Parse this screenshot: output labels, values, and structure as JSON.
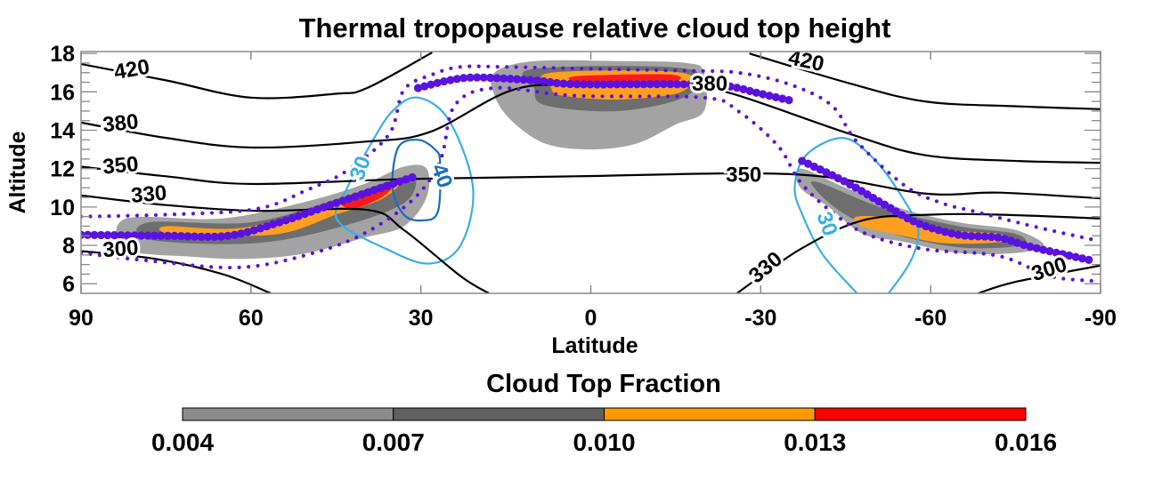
{
  "chart_data": {
    "type": "heatmap",
    "title": "Thermal tropopause relative cloud top height",
    "xlabel": "Latitude",
    "ylabel": "Altitude",
    "xlim": [
      90,
      -90
    ],
    "ylim": [
      5.5,
      18.1
    ],
    "x_ticks": [
      90,
      60,
      30,
      0,
      -30,
      -60,
      -90
    ],
    "y_ticks": [
      6,
      8,
      10,
      12,
      14,
      16,
      18
    ],
    "colorbar": {
      "title": "Cloud Top Fraction",
      "ticks": [
        "0.004",
        "0.007",
        "0.010",
        "0.013",
        "0.016"
      ],
      "colors": [
        "#8c8c8c",
        "#606060",
        "#ff9900",
        "#ff0000"
      ]
    },
    "cloud_regions": [
      {
        "level": 0,
        "points": [
          [
            82,
            9.4
          ],
          [
            65,
            9.4
          ],
          [
            50,
            10.3
          ],
          [
            40,
            11.2
          ],
          [
            33,
            12.1
          ],
          [
            29,
            12.0
          ],
          [
            29,
            10.5
          ],
          [
            33,
            9.0
          ],
          [
            40,
            8.4
          ],
          [
            50,
            7.6
          ],
          [
            60,
            7.3
          ],
          [
            70,
            7.4
          ],
          [
            82,
            7.8
          ]
        ]
      },
      {
        "level": 1,
        "points": [
          [
            78,
            9.2
          ],
          [
            60,
            9.2
          ],
          [
            45,
            10.4
          ],
          [
            35,
            11.4
          ],
          [
            31,
            11.6
          ],
          [
            33,
            10.2
          ],
          [
            45,
            8.9
          ],
          [
            60,
            8.1
          ],
          [
            78,
            8.3
          ]
        ]
      },
      {
        "level": 2,
        "points": [
          [
            75,
            9.0
          ],
          [
            62,
            8.9
          ],
          [
            48,
            9.9
          ],
          [
            40,
            10.7
          ],
          [
            34,
            11.2
          ],
          [
            37,
            10.4
          ],
          [
            45,
            9.6
          ],
          [
            55,
            8.6
          ],
          [
            70,
            8.5
          ],
          [
            75,
            8.6
          ]
        ]
      },
      {
        "level": 3,
        "points": [
          [
            44,
            10.3
          ],
          [
            39,
            10.9
          ],
          [
            35,
            11.1
          ],
          [
            37,
            10.5
          ],
          [
            42,
            9.9
          ]
        ]
      },
      {
        "level": 0,
        "points": [
          [
            17,
            17.0
          ],
          [
            10,
            17.6
          ],
          [
            -5,
            17.6
          ],
          [
            -17,
            17.5
          ],
          [
            -20,
            17.0
          ],
          [
            -20,
            15.0
          ],
          [
            -15,
            14.3
          ],
          [
            -8,
            13.3
          ],
          [
            0,
            13.0
          ],
          [
            8,
            13.3
          ],
          [
            14,
            14.5
          ],
          [
            17,
            15.8
          ]
        ]
      },
      {
        "level": 1,
        "points": [
          [
            10,
            17.2
          ],
          [
            -17,
            17.2
          ],
          [
            -17,
            15.8
          ],
          [
            -5,
            15.0
          ],
          [
            8,
            15.3
          ],
          [
            10,
            16.2
          ]
        ]
      },
      {
        "level": 2,
        "points": [
          [
            7,
            17.0
          ],
          [
            -16,
            17.0
          ],
          [
            -16,
            16.0
          ],
          [
            -5,
            15.6
          ],
          [
            5,
            15.8
          ],
          [
            7,
            16.2
          ]
        ]
      },
      {
        "level": 3,
        "points": [
          [
            3,
            16.8
          ],
          [
            -14,
            16.9
          ],
          [
            -14,
            16.5
          ],
          [
            0,
            16.4
          ]
        ]
      },
      {
        "level": 0,
        "points": [
          [
            -37,
            12.0
          ],
          [
            -45,
            11.0
          ],
          [
            -55,
            9.9
          ],
          [
            -65,
            9.2
          ],
          [
            -75,
            8.8
          ],
          [
            -80,
            8.0
          ],
          [
            -75,
            7.6
          ],
          [
            -65,
            7.6
          ],
          [
            -55,
            8.2
          ],
          [
            -48,
            8.6
          ],
          [
            -42,
            10.0
          ],
          [
            -37,
            11.0
          ]
        ]
      },
      {
        "level": 1,
        "points": [
          [
            -40,
            11.3
          ],
          [
            -52,
            9.9
          ],
          [
            -65,
            9.0
          ],
          [
            -75,
            8.6
          ],
          [
            -76,
            8.0
          ],
          [
            -65,
            7.9
          ],
          [
            -52,
            8.7
          ],
          [
            -45,
            9.6
          ],
          [
            -40,
            10.8
          ]
        ]
      },
      {
        "level": 2,
        "points": [
          [
            -47,
            9.5
          ],
          [
            -55,
            9.4
          ],
          [
            -63,
            8.8
          ],
          [
            -72,
            8.6
          ],
          [
            -73,
            8.2
          ],
          [
            -63,
            8.1
          ],
          [
            -55,
            8.5
          ],
          [
            -48,
            9.0
          ]
        ]
      }
    ],
    "theta_contours": [
      {
        "label": "420",
        "segments": [
          [
            [
              90,
              17.45
            ],
            [
              75,
              16.6
            ],
            [
              60,
              15.7
            ],
            [
              45,
              15.9
            ],
            [
              39.5,
              16.2
            ],
            [
              28,
              18.05
            ]
          ],
          [
            [
              -28,
              18.0
            ],
            [
              -45,
              16.5
            ],
            [
              -59,
              15.5
            ],
            [
              -75,
              15.25
            ],
            [
              -90,
              15.1
            ]
          ]
        ],
        "labels": [
          [
            81,
            17.1,
            -10
          ],
          [
            -38,
            17.55,
            12
          ]
        ]
      },
      {
        "label": "380",
        "segments": [
          [
            [
              90,
              14.4
            ],
            [
              75,
              13.6
            ],
            [
              60,
              13.1
            ],
            [
              40,
              13.4
            ],
            [
              28.5,
              13.9
            ],
            [
              14.2,
              16.06
            ],
            [
              2.8,
              16.4
            ],
            [
              -15,
              16.4
            ],
            [
              -25,
              15.9
            ],
            [
              -45.8,
              13.8
            ],
            [
              -59,
              12.7
            ],
            [
              -75,
              12.4
            ],
            [
              -90,
              12.3
            ]
          ]
        ],
        "labels": [
          [
            83,
            14.3,
            -6
          ],
          [
            -21,
            16.35,
            0
          ]
        ]
      },
      {
        "label": "350",
        "segments": [
          [
            [
              90,
              12.1
            ],
            [
              75,
              11.6
            ],
            [
              60,
              11.2
            ],
            [
              33,
              11.45
            ],
            [
              2.8,
              11.6
            ],
            [
              -36,
              11.7
            ],
            [
              -59,
              10.7
            ],
            [
              -72,
              10.75
            ],
            [
              -90,
              10.45
            ]
          ]
        ],
        "labels": [
          [
            83,
            12.1,
            -5
          ],
          [
            -27,
            11.6,
            0
          ]
        ]
      },
      {
        "label": "330",
        "segments": [
          [
            [
              90,
              10.6
            ],
            [
              75,
              10.1
            ],
            [
              59,
              9.8
            ],
            [
              39.5,
              9.85
            ],
            [
              33,
              8.8
            ],
            [
              23,
              6.4
            ],
            [
              18,
              5.5
            ]
          ],
          [
            [
              -25.8,
              5.5
            ],
            [
              -37,
              7.8
            ],
            [
              -48,
              9.3
            ],
            [
              -60,
              9.6
            ],
            [
              -72,
              9.6
            ],
            [
              -90,
              9.4
            ]
          ]
        ],
        "labels": [
          [
            78,
            10.6,
            -5
          ],
          [
            -31,
            6.8,
            -40
          ]
        ]
      },
      {
        "label": "300",
        "segments": [
          [
            [
              90,
              7.7
            ],
            [
              77,
              7.3
            ],
            [
              65,
              6.5
            ],
            [
              56.5,
              5.5
            ]
          ],
          [
            [
              -68.4,
              5.5
            ],
            [
              -75,
              6.1
            ],
            [
              -90,
              6.95
            ]
          ]
        ],
        "labels": [
          [
            83,
            7.75,
            -4
          ],
          [
            -81,
            6.7,
            -18
          ]
        ]
      }
    ],
    "rh_contours": [
      {
        "label": "30",
        "color": "#3aaee6",
        "closed": true,
        "points": [
          [
            30.5,
            15.7
          ],
          [
            25,
            14.5
          ],
          [
            20.8,
            11.0
          ],
          [
            23,
            8.0
          ],
          [
            28.6,
            7.05
          ],
          [
            36,
            7.8
          ],
          [
            44.7,
            9.3
          ],
          [
            43,
            11
          ],
          [
            39,
            13.2
          ],
          [
            35,
            15.0
          ]
        ],
        "label_pos": [
          40.5,
          12.0,
          -70
        ]
      },
      {
        "label": "40",
        "color": "#1a6cc0",
        "closed": true,
        "points": [
          [
            30.5,
            13.5
          ],
          [
            27.5,
            13.0
          ],
          [
            26.6,
            12.3
          ],
          [
            27,
            9.75
          ],
          [
            29.8,
            9.3
          ],
          [
            33,
            9.6
          ],
          [
            35,
            11.0
          ],
          [
            34,
            13.1
          ]
        ],
        "label_pos": [
          26.5,
          11.6,
          70
        ]
      },
      {
        "label": "30",
        "color": "#3aaee6",
        "closed": false,
        "points": [
          [
            -47,
            5.5
          ],
          [
            -41,
            7.5
          ],
          [
            -37.5,
            9.5
          ],
          [
            -36,
            11.0
          ],
          [
            -38,
            12.7
          ],
          [
            -44.5,
            13.6
          ],
          [
            -50,
            12.5
          ],
          [
            -55,
            10.5
          ],
          [
            -57.8,
            8.8
          ],
          [
            -56.5,
            7.2
          ],
          [
            -52.6,
            5.5
          ]
        ],
        "label_pos": [
          -41.5,
          9.1,
          70
        ]
      }
    ],
    "tropopause_series": [
      {
        "name": "tropopause-lower-nh",
        "style": "large-dots",
        "points": [
          [
            90,
            8.55
          ],
          [
            75,
            8.5
          ],
          [
            64,
            8.5
          ],
          [
            55,
            9.2
          ],
          [
            46,
            10.1
          ],
          [
            38,
            10.9
          ],
          [
            31,
            11.6
          ]
        ]
      },
      {
        "name": "tropopause-upper",
        "style": "large-dots",
        "points": [
          [
            30.5,
            16.2
          ],
          [
            25,
            16.6
          ],
          [
            20,
            16.75
          ],
          [
            10,
            16.6
          ],
          [
            2.8,
            16.4
          ],
          [
            -15,
            16.4
          ],
          [
            -24,
            16.3
          ],
          [
            -30,
            15.9
          ],
          [
            -36,
            15.5
          ]
        ]
      },
      {
        "name": "tropopause-lower-sh",
        "style": "large-dots",
        "points": [
          [
            -37.3,
            12.4
          ],
          [
            -45,
            11.3
          ],
          [
            -52,
            10.1
          ],
          [
            -57.8,
            9.15
          ],
          [
            -65,
            8.55
          ],
          [
            -72,
            8.4
          ],
          [
            -78,
            7.9
          ],
          [
            -88.6,
            7.2
          ]
        ]
      },
      {
        "name": "tropopause-plus-sigma",
        "style": "small-dots",
        "points": [
          [
            90,
            9.5
          ],
          [
            75,
            9.6
          ],
          [
            59,
            9.9
          ],
          [
            50,
            10.9
          ],
          [
            43,
            11.9
          ],
          [
            35.6,
            13.8
          ],
          [
            33,
            16.1
          ],
          [
            28,
            16.9
          ],
          [
            23,
            17.3
          ],
          [
            15,
            17.3
          ],
          [
            0,
            17.2
          ],
          [
            -16.6,
            17.1
          ],
          [
            -26,
            17.0
          ],
          [
            -35,
            16.4
          ],
          [
            -42.5,
            15.3
          ],
          [
            -47,
            13.4
          ],
          [
            -55.5,
            11.1
          ],
          [
            -62,
            10.2
          ],
          [
            -68,
            9.75
          ],
          [
            -78,
            9.0
          ],
          [
            -88.6,
            8.3
          ]
        ]
      },
      {
        "name": "tropopause-minus-sigma",
        "style": "small-dots",
        "points": [
          [
            90,
            7.6
          ],
          [
            78,
            7.2
          ],
          [
            62,
            6.85
          ],
          [
            49,
            7.6
          ],
          [
            39.5,
            8.7
          ],
          [
            31,
            10.5
          ],
          [
            26.5,
            12.5
          ],
          [
            24,
            15.3
          ],
          [
            17,
            16.2
          ],
          [
            2.8,
            15.8
          ],
          [
            -20,
            15.7
          ],
          [
            -26,
            15.0
          ],
          [
            -33,
            13.2
          ],
          [
            -37,
            11.3
          ],
          [
            -42.5,
            9.75
          ],
          [
            -49,
            8.55
          ],
          [
            -59,
            7.8
          ],
          [
            -72,
            7.45
          ],
          [
            -81,
            6.4
          ],
          [
            -88.6,
            6.15
          ]
        ]
      }
    ]
  }
}
